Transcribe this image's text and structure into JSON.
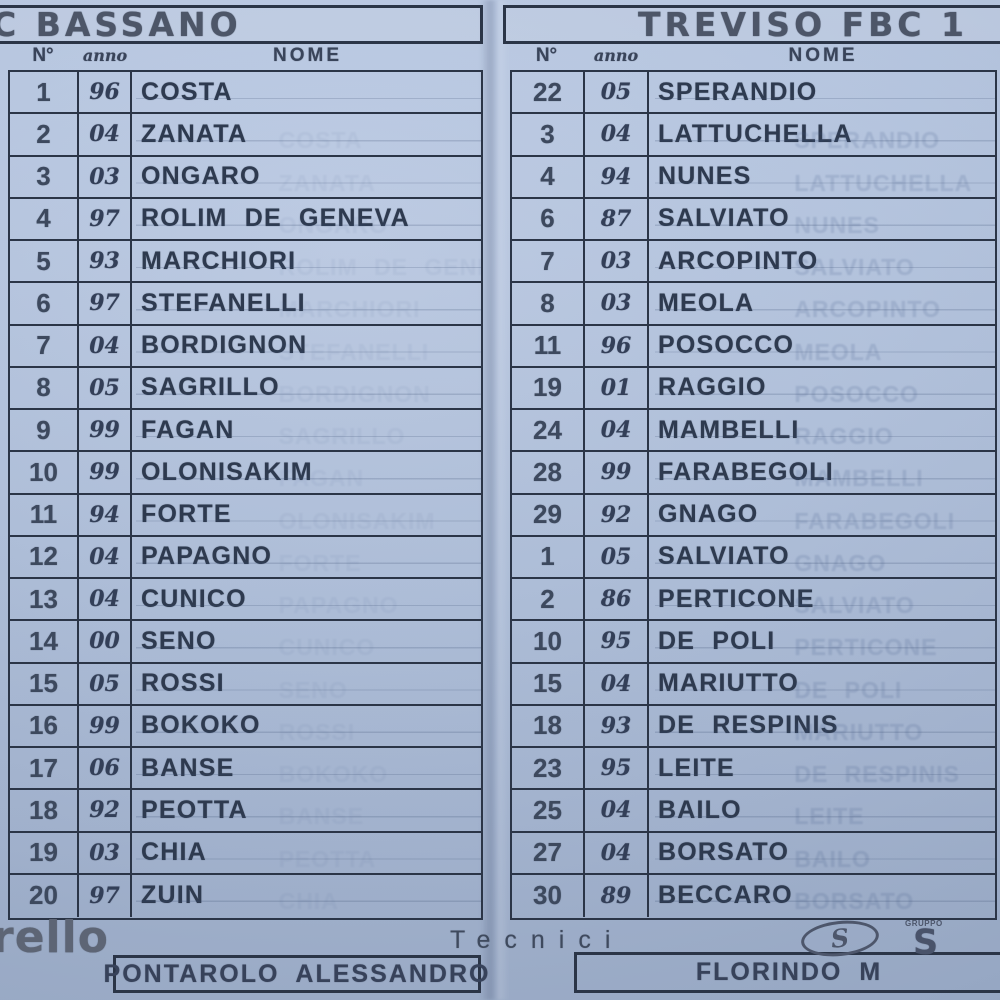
{
  "colors": {
    "paper": "#aec0dc",
    "ink_lines": "#2b3547",
    "ink_text": "#2e3a4f",
    "ink_title": "#4d5668"
  },
  "left": {
    "title": "C BASSANO",
    "headers": {
      "num": "N°",
      "anno": "anno",
      "nome": "NOME"
    },
    "rows": [
      {
        "num": "1",
        "anno": "96",
        "name": "COSTA"
      },
      {
        "num": "2",
        "anno": "04",
        "name": "ZANATA"
      },
      {
        "num": "3",
        "anno": "03",
        "name": "ONGARO"
      },
      {
        "num": "4",
        "anno": "97",
        "name": "ROLIM DE GENEVA"
      },
      {
        "num": "5",
        "anno": "93",
        "name": "MARCHIORI"
      },
      {
        "num": "6",
        "anno": "97",
        "name": "STEFANELLI"
      },
      {
        "num": "7",
        "anno": "04",
        "name": "BORDIGNON"
      },
      {
        "num": "8",
        "anno": "05",
        "name": "SAGRILLO"
      },
      {
        "num": "9",
        "anno": "99",
        "name": "FAGAN"
      },
      {
        "num": "10",
        "anno": "99",
        "name": "OLONISAKIM"
      },
      {
        "num": "11",
        "anno": "94",
        "name": "FORTE"
      },
      {
        "num": "12",
        "anno": "04",
        "name": "PAPAGNO"
      },
      {
        "num": "13",
        "anno": "04",
        "name": "CUNICO"
      },
      {
        "num": "14",
        "anno": "00",
        "name": "SENO"
      },
      {
        "num": "15",
        "anno": "05",
        "name": "ROSSI"
      },
      {
        "num": "16",
        "anno": "99",
        "name": "BOKOKO"
      },
      {
        "num": "17",
        "anno": "06",
        "name": "BANSE"
      },
      {
        "num": "18",
        "anno": "92",
        "name": "PEOTTA"
      },
      {
        "num": "19",
        "anno": "03",
        "name": "CHIA"
      },
      {
        "num": "20",
        "anno": "97",
        "name": "ZUIN"
      }
    ],
    "staff_name": "PONTAROLO ALESSANDRO"
  },
  "right": {
    "title": "TREVISO FBC 1",
    "headers": {
      "num": "N°",
      "anno": "anno",
      "nome": "NOME"
    },
    "rows": [
      {
        "num": "22",
        "anno": "05",
        "name": "SPERANDIO"
      },
      {
        "num": "3",
        "anno": "04",
        "name": "LATTUCHELLA"
      },
      {
        "num": "4",
        "anno": "94",
        "name": "NUNES"
      },
      {
        "num": "6",
        "anno": "87",
        "name": "SALVIATO"
      },
      {
        "num": "7",
        "anno": "03",
        "name": "ARCOPINTO"
      },
      {
        "num": "8",
        "anno": "03",
        "name": "MEOLA"
      },
      {
        "num": "11",
        "anno": "96",
        "name": "POSOCCO"
      },
      {
        "num": "19",
        "anno": "01",
        "name": "RAGGIO"
      },
      {
        "num": "24",
        "anno": "04",
        "name": "MAMBELLI"
      },
      {
        "num": "28",
        "anno": "99",
        "name": "FARABEGOLI"
      },
      {
        "num": "29",
        "anno": "92",
        "name": "GNAGO"
      },
      {
        "num": "1",
        "anno": "05",
        "name": "SALVIATO"
      },
      {
        "num": "2",
        "anno": "86",
        "name": "PERTICONE"
      },
      {
        "num": "10",
        "anno": "95",
        "name": "DE POLI"
      },
      {
        "num": "15",
        "anno": "04",
        "name": "MARIUTTO"
      },
      {
        "num": "18",
        "anno": "93",
        "name": "DE RESPINIS"
      },
      {
        "num": "23",
        "anno": "95",
        "name": "LEITE"
      },
      {
        "num": "25",
        "anno": "04",
        "name": "BAILO"
      },
      {
        "num": "27",
        "anno": "04",
        "name": "BORSATO"
      },
      {
        "num": "30",
        "anno": "89",
        "name": "BECCARO"
      }
    ],
    "staff_name": "FLORINDO M"
  },
  "footer": {
    "left_logo_text": "rello",
    "tecnici_label": "Tecnici",
    "sponsor_oval_letter": "S",
    "sponsor_small_text": "GRUPPO",
    "sponsor_big_text": "S"
  }
}
